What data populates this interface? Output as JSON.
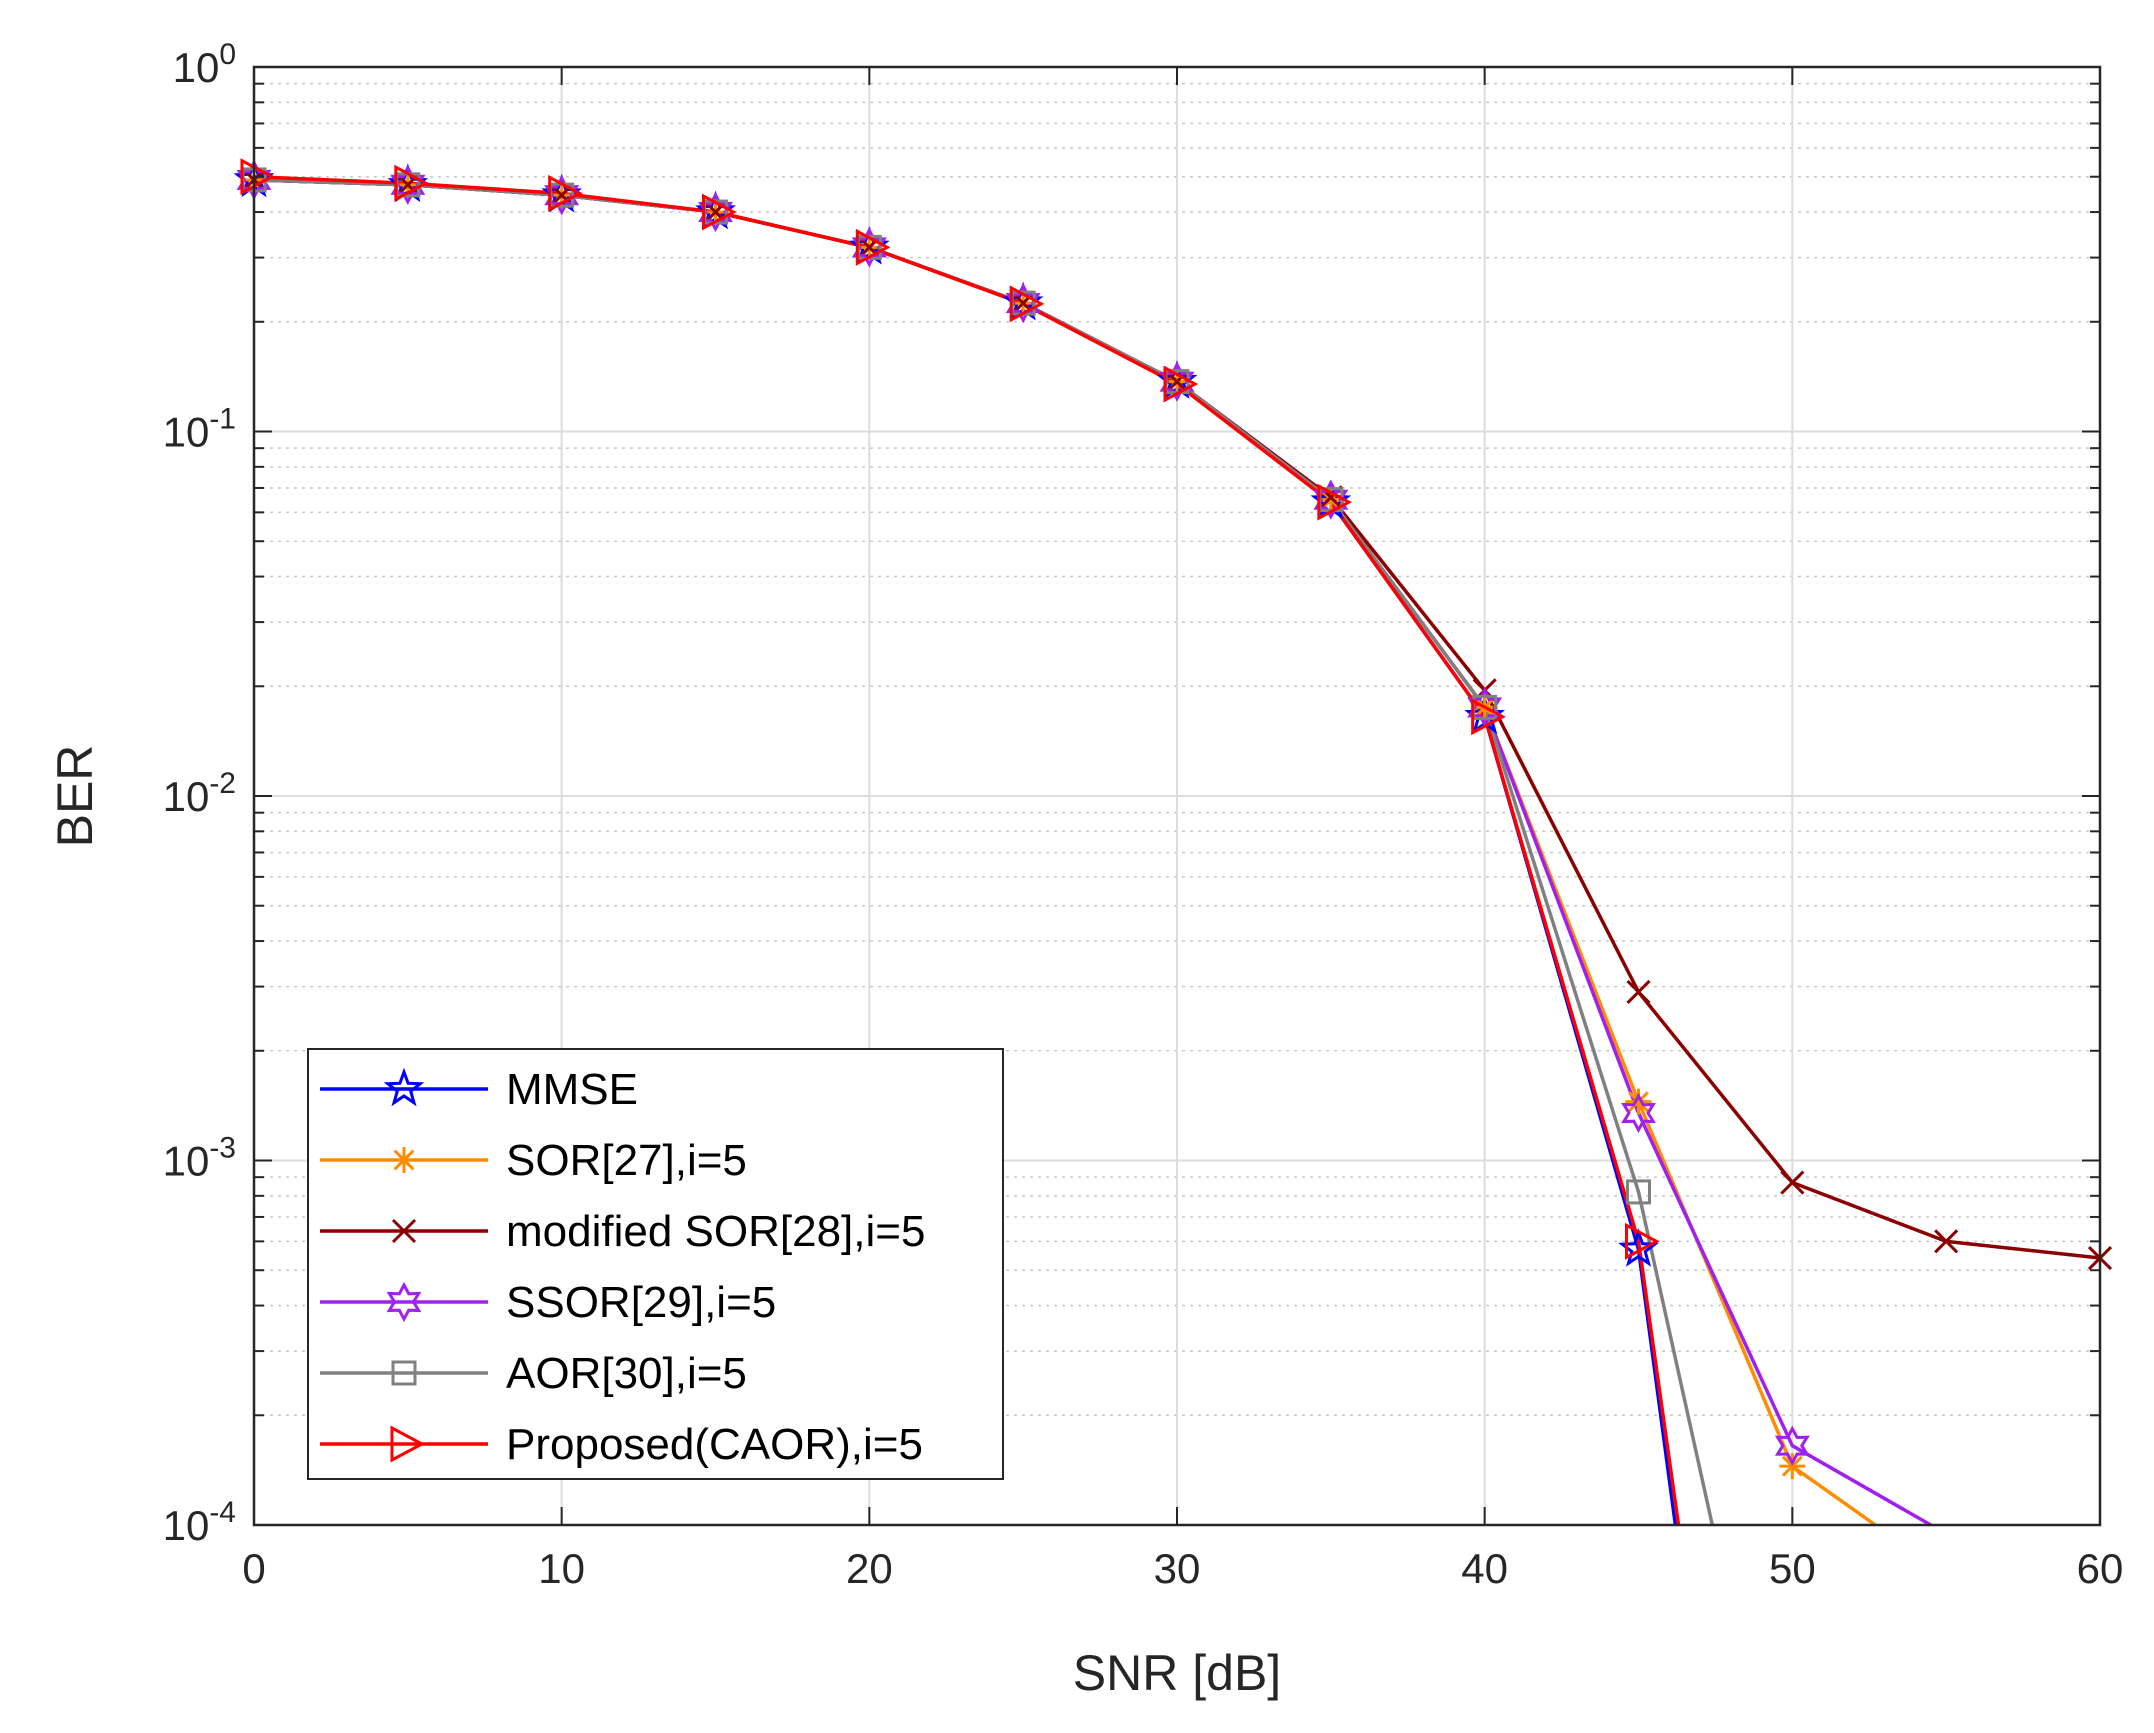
{
  "chart_data": {
    "type": "line",
    "title": "",
    "xlabel": "SNR [dB]",
    "ylabel": "BER",
    "xscale": "linear",
    "yscale": "log",
    "xlim": [
      0,
      60
    ],
    "ylim": [
      0.0001,
      1
    ],
    "grid": true,
    "minor_grid": true,
    "legend_position": "bottom-left",
    "x_ticks": [
      0,
      10,
      20,
      30,
      40,
      50,
      60
    ],
    "x_tick_labels": [
      "0",
      "10",
      "20",
      "30",
      "40",
      "50",
      "60"
    ],
    "y_ticks": [
      1,
      0.1,
      0.01,
      0.001,
      0.0001
    ],
    "y_tick_labels": [
      {
        "base": "10",
        "exp": "0"
      },
      {
        "base": "10",
        "exp": "-1"
      },
      {
        "base": "10",
        "exp": "-2"
      },
      {
        "base": "10",
        "exp": "-3"
      },
      {
        "base": "10",
        "exp": "-4"
      }
    ],
    "series": [
      {
        "name": "MMSE",
        "color": "#0000ff",
        "marker": "star",
        "x": [
          0,
          5,
          10,
          15,
          20,
          25,
          30,
          35,
          40,
          45,
          46.2
        ],
        "y": [
          0.49,
          0.475,
          0.445,
          0.4,
          0.32,
          0.225,
          0.137,
          0.064,
          0.0165,
          0.00057,
          0.0001
        ]
      },
      {
        "name": "SOR[27],i=5",
        "color": "#ff8c00",
        "marker": "asterisk",
        "x": [
          0,
          5,
          10,
          15,
          20,
          25,
          30,
          35,
          40,
          45,
          50,
          52.7
        ],
        "y": [
          0.49,
          0.475,
          0.445,
          0.4,
          0.32,
          0.225,
          0.137,
          0.065,
          0.0175,
          0.00145,
          0.000145,
          0.0001
        ]
      },
      {
        "name": "modified SOR[28],i=5",
        "color": "#8b0000",
        "marker": "x",
        "x": [
          0,
          5,
          10,
          15,
          20,
          25,
          30,
          35,
          40,
          45,
          50,
          55,
          60
        ],
        "y": [
          0.49,
          0.475,
          0.445,
          0.4,
          0.32,
          0.225,
          0.137,
          0.066,
          0.0195,
          0.0029,
          0.00087,
          0.0006,
          0.00054
        ]
      },
      {
        "name": "SSOR[29],i=5",
        "color": "#a020f0",
        "marker": "hexagram",
        "x": [
          0,
          5,
          10,
          15,
          20,
          25,
          30,
          35,
          40,
          45,
          50,
          54.5
        ],
        "y": [
          0.49,
          0.475,
          0.445,
          0.4,
          0.32,
          0.225,
          0.137,
          0.065,
          0.0175,
          0.00135,
          0.000165,
          0.0001
        ]
      },
      {
        "name": "AOR[30],i=5",
        "color": "#808080",
        "marker": "square",
        "x": [
          0,
          5,
          10,
          15,
          20,
          25,
          30,
          35,
          40,
          45,
          47.4
        ],
        "y": [
          0.49,
          0.475,
          0.445,
          0.4,
          0.32,
          0.225,
          0.137,
          0.065,
          0.0175,
          0.00082,
          0.0001
        ]
      },
      {
        "name": "Proposed(CAOR),i=5",
        "color": "#ff0000",
        "marker": "triangle-right",
        "x": [
          0,
          5,
          10,
          15,
          20,
          25,
          30,
          35,
          40,
          45,
          46.3
        ],
        "y": [
          0.5,
          0.48,
          0.45,
          0.4,
          0.32,
          0.224,
          0.135,
          0.064,
          0.0165,
          0.0006,
          0.0001
        ]
      }
    ]
  }
}
